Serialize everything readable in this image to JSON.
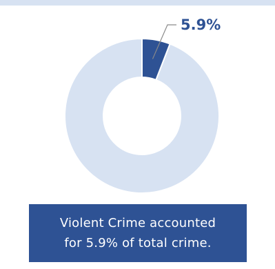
{
  "colors": {
    "highlight": "#2e5294",
    "remainder": "#d7e2f2",
    "leader": "#8a8a8a",
    "caption_bg": "#2e5294",
    "caption_text": "#ffffff"
  },
  "chart_data": {
    "type": "pie",
    "variant": "donut",
    "slices": [
      {
        "value": 5.9
      },
      {
        "value": 94.1
      }
    ],
    "data_label": "5.9%",
    "title": "",
    "legend": "none"
  },
  "caption": {
    "line1": "Violent Crime accounted",
    "line2": "for 5.9% of total crime."
  }
}
